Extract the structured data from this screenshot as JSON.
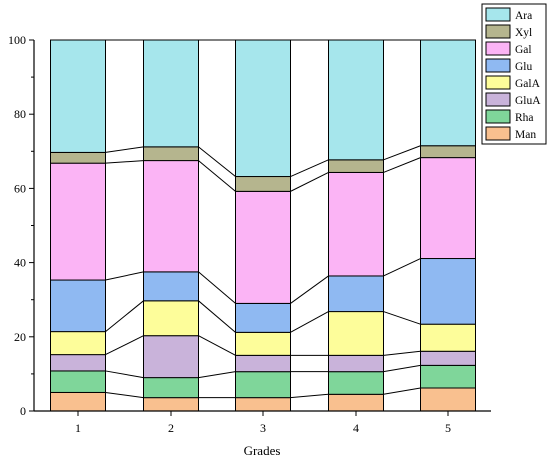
{
  "chart_data": {
    "type": "bar",
    "stacked": true,
    "categories": [
      "1",
      "2",
      "3",
      "4",
      "5"
    ],
    "xlabel": "Grades",
    "ylabel": "",
    "ylim": [
      0,
      100
    ],
    "yticks": [
      0,
      20,
      40,
      60,
      80,
      100
    ],
    "grid": false,
    "legend_position": "top-right",
    "connector_lines": true,
    "series": [
      {
        "name": "Man",
        "color": "#f9c08f",
        "values": [
          5.0,
          3.6,
          3.6,
          4.5,
          6.2
        ]
      },
      {
        "name": "Rha",
        "color": "#7fd69a",
        "values": [
          5.8,
          5.4,
          7.0,
          6.1,
          6.1
        ]
      },
      {
        "name": "GluA",
        "color": "#c9b3da",
        "values": [
          4.4,
          11.3,
          4.4,
          4.4,
          3.8
        ]
      },
      {
        "name": "GalA",
        "color": "#fdfd9a",
        "values": [
          6.2,
          9.4,
          6.2,
          11.8,
          7.3
        ]
      },
      {
        "name": "Glu",
        "color": "#8fb9f2",
        "values": [
          13.9,
          7.8,
          7.8,
          9.6,
          17.7
        ]
      },
      {
        "name": "Gal",
        "color": "#fbb4f5",
        "values": [
          31.5,
          30.0,
          30.2,
          27.9,
          27.2
        ]
      },
      {
        "name": "Xyl",
        "color": "#b5b58e",
        "values": [
          2.9,
          3.7,
          4.0,
          3.4,
          3.2
        ]
      },
      {
        "name": "Ara",
        "color": "#a6e6ec",
        "values": [
          30.3,
          28.8,
          36.8,
          32.3,
          28.5
        ]
      }
    ]
  }
}
